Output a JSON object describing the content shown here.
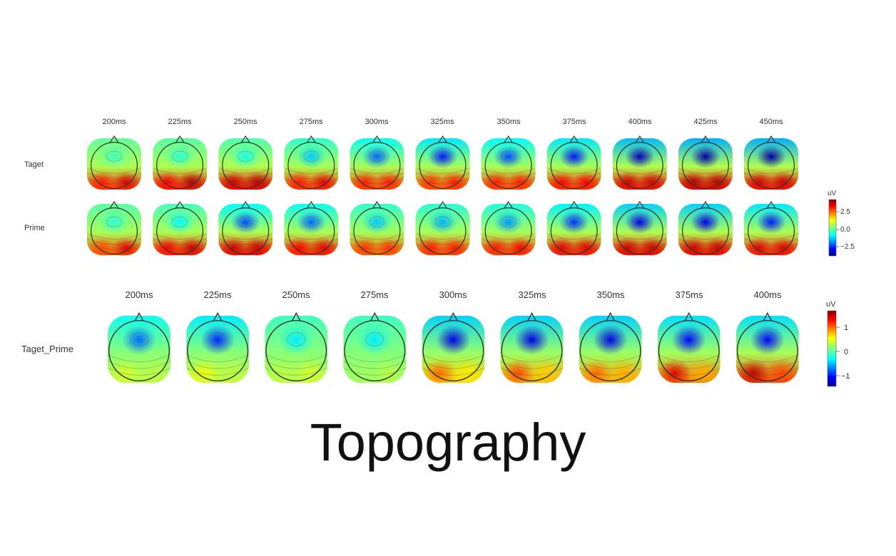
{
  "panels": [
    {
      "times": [
        "200ms",
        "225ms",
        "250ms",
        "275ms",
        "300ms",
        "325ms",
        "350ms",
        "375ms",
        "400ms",
        "425ms",
        "450ms"
      ],
      "rows": [
        {
          "label": "Taget",
          "maps": [
            {
              "front": -0.6,
              "occL": 3.0,
              "occR": 3.5
            },
            {
              "front": -0.8,
              "occL": 3.2,
              "occR": 3.8
            },
            {
              "front": -1.0,
              "occL": 3.6,
              "occR": 3.8
            },
            {
              "front": -1.6,
              "occL": 3.0,
              "occR": 3.4
            },
            {
              "front": -2.4,
              "occL": 3.0,
              "occR": 3.0
            },
            {
              "front": -3.0,
              "occL": 2.8,
              "occR": 3.0
            },
            {
              "front": -2.6,
              "occL": 3.0,
              "occR": 3.0
            },
            {
              "front": -3.0,
              "occL": 3.2,
              "occR": 3.2
            },
            {
              "front": -3.8,
              "occL": 3.6,
              "occR": 3.6
            },
            {
              "front": -4.0,
              "occL": 3.8,
              "occR": 3.8
            },
            {
              "front": -4.0,
              "occL": 3.6,
              "occR": 3.6
            }
          ]
        },
        {
          "label": "Prime",
          "maps": [
            {
              "front": -0.8,
              "occL": 2.6,
              "occR": 3.4
            },
            {
              "front": -1.2,
              "occL": 3.2,
              "occR": 3.6
            },
            {
              "front": -2.6,
              "occL": 3.6,
              "occR": 3.6
            },
            {
              "front": -2.4,
              "occL": 3.2,
              "occR": 3.4
            },
            {
              "front": -1.6,
              "occL": 2.8,
              "occR": 2.8
            },
            {
              "front": -1.8,
              "occL": 3.0,
              "occR": 3.0
            },
            {
              "front": -2.0,
              "occL": 3.0,
              "occR": 3.2
            },
            {
              "front": -2.8,
              "occL": 3.4,
              "occR": 3.4
            },
            {
              "front": -3.4,
              "occL": 3.6,
              "occR": 3.6
            },
            {
              "front": -3.4,
              "occL": 3.6,
              "occR": 3.6
            },
            {
              "front": -3.0,
              "occL": 3.4,
              "occR": 3.4
            }
          ]
        }
      ],
      "colorbar": {
        "unit": "uV",
        "ticks": [
          "2.5",
          "0.0",
          "−2.5"
        ],
        "min": -4.2,
        "max": 4.2
      }
    },
    {
      "times": [
        "200ms",
        "225ms",
        "250ms",
        "275ms",
        "300ms",
        "325ms",
        "350ms",
        "375ms",
        "400ms"
      ],
      "rows": [
        {
          "label": "Taget_Prime",
          "maps": [
            {
              "front": -0.9,
              "occL": 0.3,
              "occR": 0.2
            },
            {
              "front": -1.1,
              "occL": 0.4,
              "occR": 0.2
            },
            {
              "front": -0.5,
              "occL": 0.2,
              "occR": 0.3
            },
            {
              "front": -0.5,
              "occL": 0.1,
              "occR": 0.2
            },
            {
              "front": -1.3,
              "occL": 0.9,
              "occR": 0.5
            },
            {
              "front": -1.3,
              "occL": 1.0,
              "occR": 0.6
            },
            {
              "front": -1.3,
              "occL": 0.9,
              "occR": 0.7
            },
            {
              "front": -1.2,
              "occL": 1.3,
              "occR": 0.7
            },
            {
              "front": -1.2,
              "occL": 1.4,
              "occR": 1.0
            }
          ]
        }
      ],
      "colorbar": {
        "unit": "uV",
        "ticks": [
          "1",
          "0",
          "−1"
        ],
        "min": -1.6,
        "max": 1.6
      }
    }
  ],
  "page_title": "Topography"
}
